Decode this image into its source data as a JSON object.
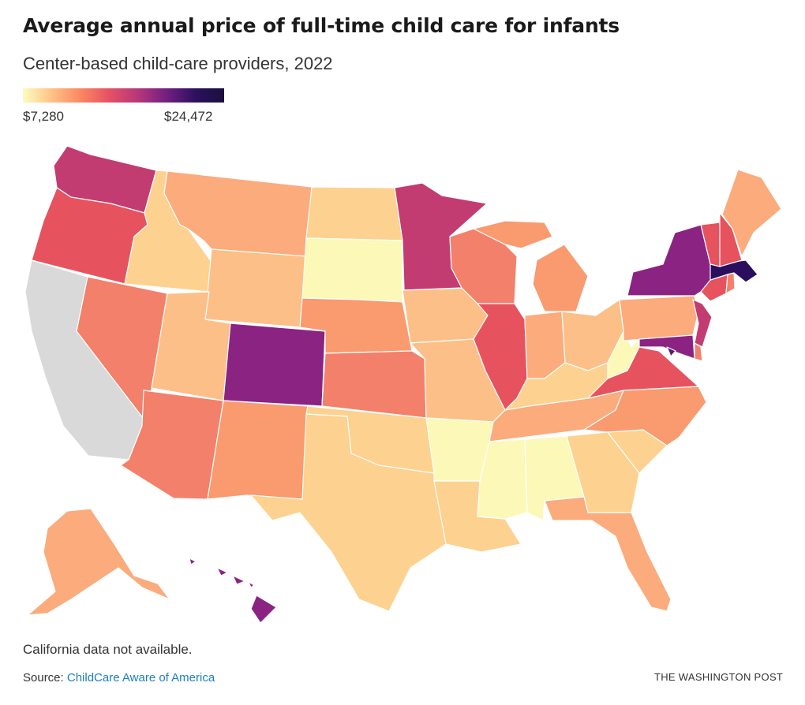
{
  "title": "Average annual price of full-time child care for infants",
  "subtitle": "Center-based child-care providers, 2022",
  "legend": {
    "min_label": "$7,280",
    "max_label": "$24,472"
  },
  "note": "California data not available.",
  "source": {
    "prefix": "Source: ",
    "link_text": "ChildCare Aware of America"
  },
  "credit": "THE WASHINGTON POST",
  "colors": {
    "no_data": "#d9d9d9",
    "c1": "#fcf8b8",
    "c2": "#fdd18f",
    "c3": "#fcbf87",
    "c4": "#fbab7c",
    "c5": "#f99a6f",
    "c6": "#f3806a",
    "c7": "#e6535f",
    "c8": "#c23c72",
    "c9": "#8b2382",
    "c10": "#5a1a78",
    "c11": "#2a0f5e"
  },
  "states": [
    {
      "id": "WA",
      "cls": "c8"
    },
    {
      "id": "OR",
      "cls": "c7"
    },
    {
      "id": "CA",
      "cls": "no_data"
    },
    {
      "id": "ID",
      "cls": "c2"
    },
    {
      "id": "NV",
      "cls": "c6"
    },
    {
      "id": "AZ",
      "cls": "c6"
    },
    {
      "id": "MT",
      "cls": "c4"
    },
    {
      "id": "WY",
      "cls": "c3"
    },
    {
      "id": "UT",
      "cls": "c3"
    },
    {
      "id": "CO",
      "cls": "c9"
    },
    {
      "id": "NM",
      "cls": "c5"
    },
    {
      "id": "ND",
      "cls": "c2"
    },
    {
      "id": "SD",
      "cls": "c1"
    },
    {
      "id": "NE",
      "cls": "c5"
    },
    {
      "id": "KS",
      "cls": "c6"
    },
    {
      "id": "OK",
      "cls": "c2"
    },
    {
      "id": "TX",
      "cls": "c2"
    },
    {
      "id": "MN",
      "cls": "c8"
    },
    {
      "id": "IA",
      "cls": "c3"
    },
    {
      "id": "MO",
      "cls": "c3"
    },
    {
      "id": "AR",
      "cls": "c1"
    },
    {
      "id": "LA",
      "cls": "c2"
    },
    {
      "id": "WI",
      "cls": "c6"
    },
    {
      "id": "IL",
      "cls": "c7"
    },
    {
      "id": "MI",
      "cls": "c5"
    },
    {
      "id": "IN",
      "cls": "c4"
    },
    {
      "id": "OH",
      "cls": "c3"
    },
    {
      "id": "KY",
      "cls": "c2"
    },
    {
      "id": "TN",
      "cls": "c4"
    },
    {
      "id": "MS",
      "cls": "c1"
    },
    {
      "id": "AL",
      "cls": "c1"
    },
    {
      "id": "GA",
      "cls": "c2"
    },
    {
      "id": "FL",
      "cls": "c4"
    },
    {
      "id": "SC",
      "cls": "c2"
    },
    {
      "id": "NC",
      "cls": "c5"
    },
    {
      "id": "VA",
      "cls": "c7"
    },
    {
      "id": "WV",
      "cls": "c1"
    },
    {
      "id": "PA",
      "cls": "c4"
    },
    {
      "id": "NY",
      "cls": "c9"
    },
    {
      "id": "VT",
      "cls": "c7"
    },
    {
      "id": "NH",
      "cls": "c7"
    },
    {
      "id": "ME",
      "cls": "c4"
    },
    {
      "id": "MA",
      "cls": "c11"
    },
    {
      "id": "CT",
      "cls": "c7"
    },
    {
      "id": "RI",
      "cls": "c6"
    },
    {
      "id": "NJ",
      "cls": "c8"
    },
    {
      "id": "DE",
      "cls": "c6"
    },
    {
      "id": "MD",
      "cls": "c9"
    },
    {
      "id": "DC",
      "cls": "c10"
    },
    {
      "id": "AK",
      "cls": "c4"
    },
    {
      "id": "HI",
      "cls": "c9"
    }
  ]
}
